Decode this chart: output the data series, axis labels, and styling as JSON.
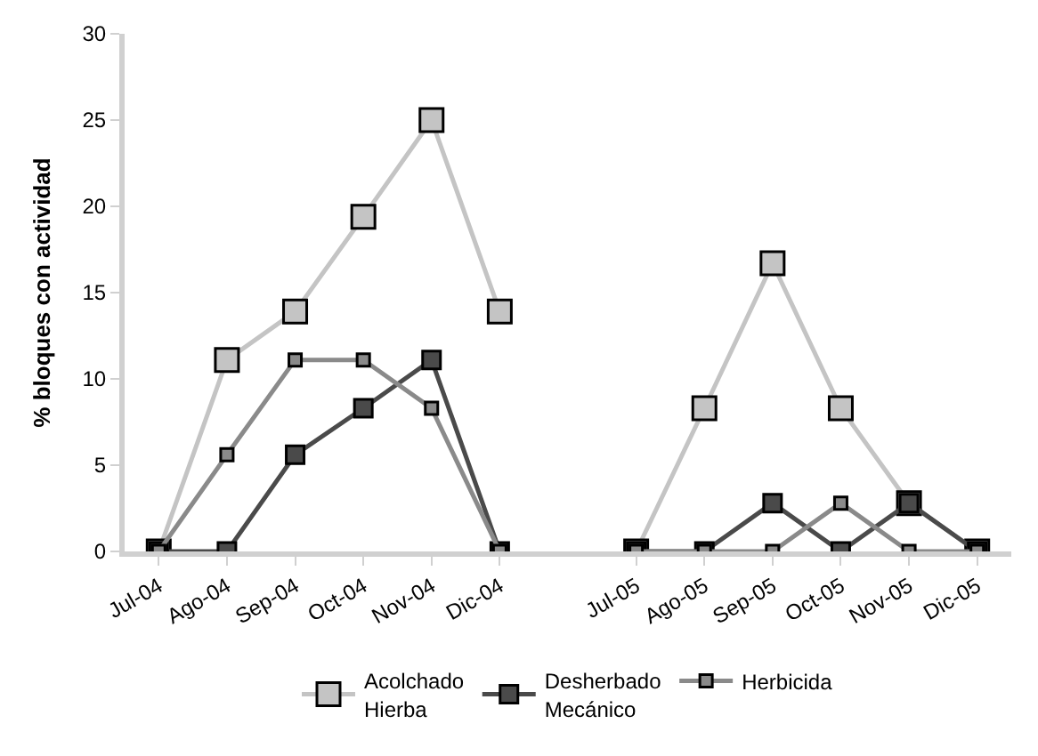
{
  "chart_data": {
    "type": "line",
    "ylabel": "% bloques con actividad",
    "categories": [
      "Jul-04",
      "Ago-04",
      "Sep-04",
      "Oct-04",
      "Nov-04",
      "Dic-04",
      null,
      "Jul-05",
      "Ago-05",
      "Sep-05",
      "Oct-05",
      "Nov-05",
      "Dic-05"
    ],
    "series": [
      {
        "name": "Acolchado Hierba",
        "color": "#c4c4c4",
        "values": [
          0,
          11.1,
          13.9,
          19.4,
          25,
          13.9,
          null,
          0,
          8.3,
          16.7,
          8.3,
          2.8,
          0
        ]
      },
      {
        "name": "Desherbado Mecánico",
        "color": "#4a4a4a",
        "values": [
          0,
          0,
          5.6,
          8.3,
          11.1,
          0,
          null,
          0,
          0,
          2.8,
          0,
          2.8,
          0
        ]
      },
      {
        "name": "Herbicida",
        "color": "#8a8a8a",
        "values": [
          0,
          5.6,
          11.1,
          11.1,
          8.3,
          0,
          null,
          0,
          0,
          0,
          2.8,
          0,
          0
        ]
      }
    ],
    "ylim": [
      0,
      30
    ],
    "yticks": [
      0,
      5,
      10,
      15,
      20,
      25,
      30
    ],
    "legend": "bottom",
    "marker": "square",
    "line_style": "solid"
  }
}
